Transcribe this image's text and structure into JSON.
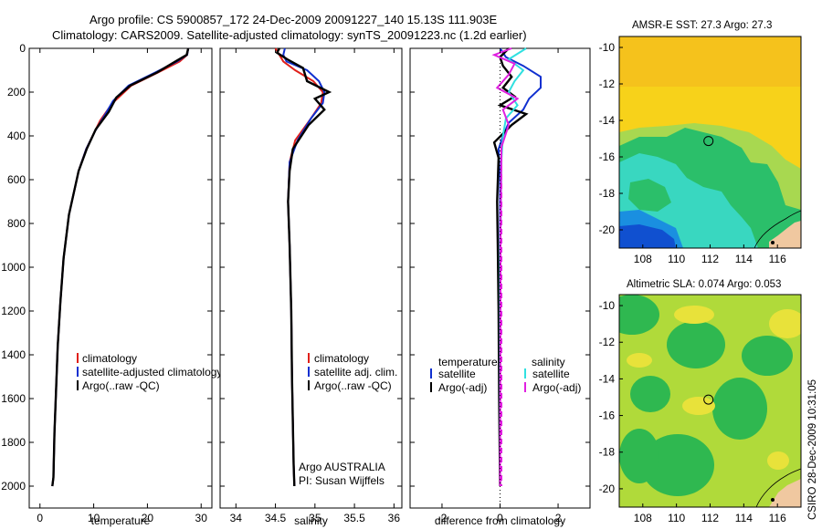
{
  "header": {
    "title_line1": "Argo profile: CS 5900857_172 24-Dec-2009 20091227_140 15.13S 111.903E",
    "title_line2": "Climatology: CARS2009. Satellite-adjusted climatology: synTS_20091223.nc (1.2d earlier)"
  },
  "colors": {
    "climatology": "#e0201a",
    "satellite": "#1030d0",
    "argo": "#000000",
    "sal_satellite": "#30e0e0",
    "sal_argo": "#e020e0"
  },
  "chart_data": [
    {
      "type": "line",
      "name": "temperature-profile",
      "xlabel": "temperature",
      "ylabel": "",
      "xlim": [
        -2,
        32
      ],
      "ylim": [
        2100,
        0
      ],
      "xticks": [
        0,
        10,
        20,
        30
      ],
      "yticks": [
        0,
        200,
        400,
        600,
        800,
        1000,
        1200,
        1400,
        1600,
        1800,
        2000
      ],
      "series": [
        {
          "name": "climatology",
          "color": "climatology",
          "x": [
            27.6,
            27.4,
            26,
            22,
            17,
            13.5,
            11.2,
            9.8,
            8.6,
            7.2,
            5.4,
            4.4,
            3.8,
            3.3,
            3.0,
            2.7,
            2.5,
            2.3
          ],
          "y": [
            0,
            30,
            60,
            110,
            170,
            250,
            330,
            400,
            460,
            560,
            760,
            960,
            1160,
            1360,
            1560,
            1760,
            1960,
            2000
          ]
        },
        {
          "name": "satellite-adjusted climatology",
          "color": "satellite",
          "x": [
            27.6,
            27.4,
            25.5,
            21.5,
            16.5,
            13.6,
            12.2,
            10.2,
            8.6,
            7.2,
            5.4,
            4.4,
            3.8,
            3.3,
            3.0,
            2.7,
            2.5,
            2.3
          ],
          "y": [
            0,
            30,
            60,
            110,
            170,
            240,
            300,
            380,
            460,
            560,
            760,
            960,
            1160,
            1360,
            1560,
            1760,
            1960,
            2000
          ]
        },
        {
          "name": "Argo(..raw -QC)",
          "color": "argo",
          "x": [
            27.6,
            27.3,
            25.2,
            21.8,
            16.8,
            14.2,
            12.8,
            10.4,
            8.7,
            7.2,
            5.4,
            4.4,
            3.8,
            3.3,
            3.0,
            2.7,
            2.5,
            2.3
          ],
          "y": [
            0,
            30,
            60,
            110,
            170,
            225,
            290,
            370,
            460,
            560,
            760,
            960,
            1160,
            1360,
            1560,
            1760,
            1960,
            2000
          ]
        }
      ],
      "legend": {
        "position": "lower-right",
        "items": [
          "climatology",
          "satellite-adjusted climatology",
          "Argo(..raw -QC)"
        ]
      }
    },
    {
      "type": "line",
      "name": "salinity-profile",
      "xlabel": "salinity",
      "ylabel": "",
      "xlim": [
        33.8,
        36.1
      ],
      "ylim": [
        2100,
        0
      ],
      "xticks": [
        34,
        34.5,
        35,
        35.5,
        36
      ],
      "xticklabels": [
        "34",
        "34.5",
        "35",
        "35.5",
        "36"
      ],
      "series": [
        {
          "name": "climatology",
          "color": "climatology",
          "x": [
            34.5,
            34.55,
            34.6,
            34.75,
            34.98,
            35.1,
            35.08,
            34.95,
            34.75,
            34.68,
            34.66,
            34.68,
            34.7,
            34.71,
            34.72,
            34.73,
            34.74
          ],
          "y": [
            0,
            30,
            60,
            100,
            150,
            200,
            250,
            320,
            420,
            520,
            700,
            900,
            1200,
            1500,
            1700,
            1900,
            2000
          ]
        },
        {
          "name": "satellite adj. clim.",
          "color": "satellite",
          "x": [
            34.62,
            34.6,
            34.64,
            34.9,
            35.05,
            35.12,
            35.1,
            34.95,
            34.78,
            34.68,
            34.66,
            34.68,
            34.7,
            34.71,
            34.72,
            34.73,
            34.74
          ],
          "y": [
            0,
            30,
            60,
            100,
            150,
            200,
            250,
            320,
            420,
            520,
            700,
            900,
            1200,
            1500,
            1700,
            1900,
            2000
          ]
        },
        {
          "name": "Argo(..raw -QC)",
          "color": "argo",
          "x": [
            34.55,
            34.52,
            34.65,
            34.85,
            34.9,
            35.18,
            35.0,
            35.12,
            34.92,
            34.72,
            34.68,
            34.66,
            34.68,
            34.7,
            34.71,
            34.72,
            34.73,
            34.74
          ],
          "y": [
            0,
            20,
            50,
            90,
            150,
            200,
            230,
            280,
            350,
            460,
            560,
            700,
            900,
            1200,
            1500,
            1700,
            1900,
            2000
          ]
        }
      ],
      "legend": {
        "position": "lower-right",
        "items": [
          "climatology",
          "satellite adj. clim.",
          "Argo(..raw -QC)"
        ]
      },
      "annotation": [
        "Argo AUSTRALIA",
        "PI: Susan Wijffels"
      ]
    },
    {
      "type": "line",
      "name": "difference-profile",
      "xlabel": "difference from climatology",
      "ylabel": "",
      "xlim": [
        -3.1,
        3.1
      ],
      "ylim": [
        2100,
        0
      ],
      "xticks": [
        -2,
        0,
        2
      ],
      "series": [
        {
          "name": "temperature satellite",
          "color": "satellite",
          "x": [
            0.0,
            0.2,
            0.8,
            1.4,
            1.4,
            1.0,
            0.8,
            0.3,
            0.1,
            -0.05,
            0.0,
            0.0,
            0.0,
            0.0
          ],
          "y": [
            0,
            40,
            80,
            130,
            180,
            230,
            280,
            340,
            400,
            460,
            600,
            1000,
            1500,
            2000
          ]
        },
        {
          "name": "temperature Argo(-adj)",
          "color": "argo",
          "x": [
            0.3,
            0.0,
            0.1,
            0.4,
            0.1,
            0.5,
            0.0,
            0.9,
            0.4,
            -0.2,
            -0.05,
            -0.1,
            -0.08,
            -0.05,
            -0.03,
            0.0
          ],
          "y": [
            0,
            40,
            80,
            130,
            180,
            220,
            260,
            300,
            350,
            430,
            500,
            700,
            900,
            1200,
            1600,
            2000
          ]
        },
        {
          "name": "salinity satellite",
          "color": "sal_satellite",
          "x": [
            0.9,
            0.3,
            0.8,
            0.5,
            0.3,
            0.6,
            0.2,
            0.1,
            0.05,
            0.0,
            0.0
          ],
          "y": [
            0,
            50,
            100,
            150,
            200,
            260,
            320,
            400,
            500,
            1000,
            2000
          ]
        },
        {
          "name": "salinity Argo(-adj)",
          "color": "sal_argo",
          "x": [
            0.4,
            -0.2,
            0.5,
            0.3,
            -0.1,
            0.6,
            0.1,
            0.3,
            0.05,
            0.02,
            0.0
          ],
          "y": [
            0,
            30,
            70,
            120,
            180,
            230,
            280,
            350,
            450,
            800,
            2000
          ]
        }
      ],
      "legend": {
        "position": "lower-center",
        "temperature_header": "temperature",
        "salinity_header": "salinity",
        "items": [
          "satellite",
          "Argo(-adj)",
          "satellite",
          "Argo(-adj)"
        ]
      }
    },
    {
      "type": "heatmap",
      "name": "amsre-sst-map",
      "title": "AMSR-E SST: 27.3 Argo: 27.3",
      "xlim": [
        106.6,
        117.4
      ],
      "ylim": [
        -21,
        -9.4
      ],
      "xticks": [
        108,
        110,
        112,
        114,
        116
      ],
      "yticks": [
        -10,
        -12,
        -14,
        -16,
        -18,
        -20
      ],
      "marker": {
        "x": 111.9,
        "y": -15.13
      }
    },
    {
      "type": "heatmap",
      "name": "altimetric-sla-map",
      "title": "Altimetric SLA: 0.074 Argo: 0.053",
      "xlim": [
        106.6,
        117.4
      ],
      "ylim": [
        -21,
        -9.4
      ],
      "xticks": [
        108,
        110,
        112,
        114,
        116
      ],
      "yticks": [
        -10,
        -12,
        -14,
        -16,
        -18,
        -20
      ],
      "marker": {
        "x": 111.9,
        "y": -15.13
      }
    }
  ],
  "footer": {
    "stamp": "CSIRO 28-Dec-2009 10:31:05"
  }
}
